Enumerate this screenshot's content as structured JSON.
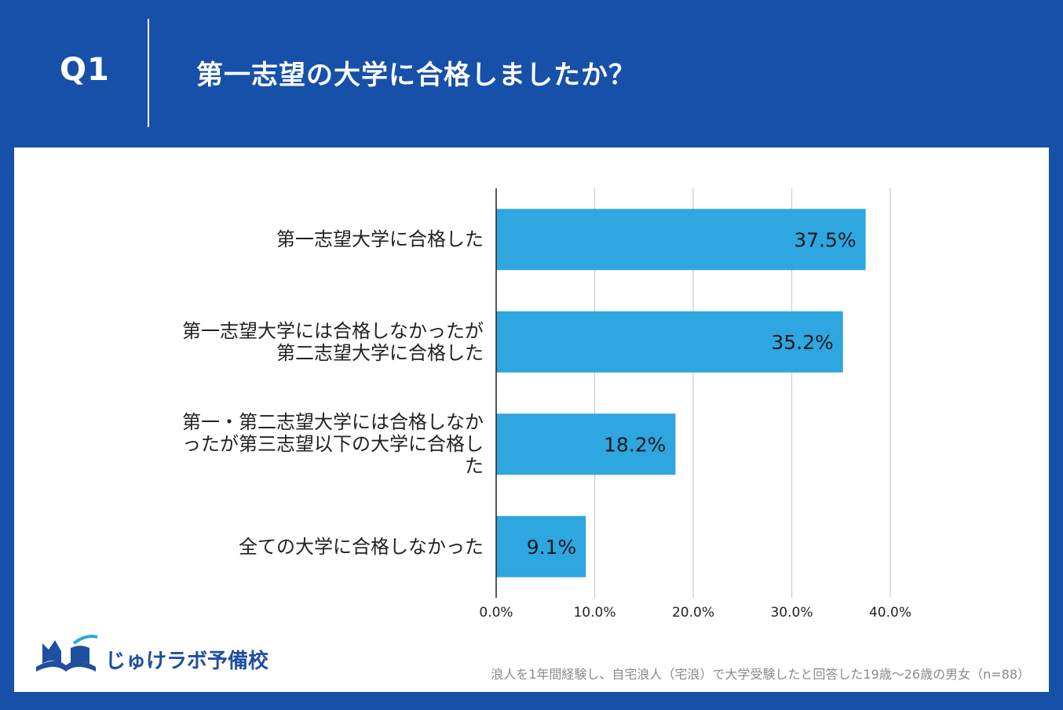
{
  "header": {
    "question_no": "Q1",
    "title": "第一志望の大学に合格しましたか？"
  },
  "chart_data": {
    "type": "bar",
    "orientation": "horizontal",
    "categories": [
      "第一志望大学に合格した",
      "第一志望大学には合格しなかったが\n第二志望大学に合格した",
      "第一・第二志望大学には合格しなか\nったが第三志望以下の大学に合格し\nた",
      "全ての大学に合格しなかった"
    ],
    "values": [
      37.5,
      35.2,
      18.2,
      9.1
    ],
    "value_labels": [
      "37.5%",
      "35.2%",
      "18.2%",
      "9.1%"
    ],
    "xlim": [
      0,
      40
    ],
    "xticks": [
      0,
      10,
      20,
      30,
      40
    ],
    "xtick_labels": [
      "0.0%",
      "10.0%",
      "20.0%",
      "30.0%",
      "40.0%"
    ],
    "grid": true,
    "bar_color": "#2ea6e0",
    "xlabel": "",
    "ylabel": ""
  },
  "logo": {
    "text": "じゅけラボ予備校"
  },
  "footnote": "浪人を1年間経験し、自宅浪人（宅浪）で大学受験したと回答した19歳〜26歳の男女（n=88）",
  "colors": {
    "header_bg": "#1650a8",
    "panel_bg": "#ffffff",
    "grid": "#cccccc",
    "axis": "#222222"
  }
}
